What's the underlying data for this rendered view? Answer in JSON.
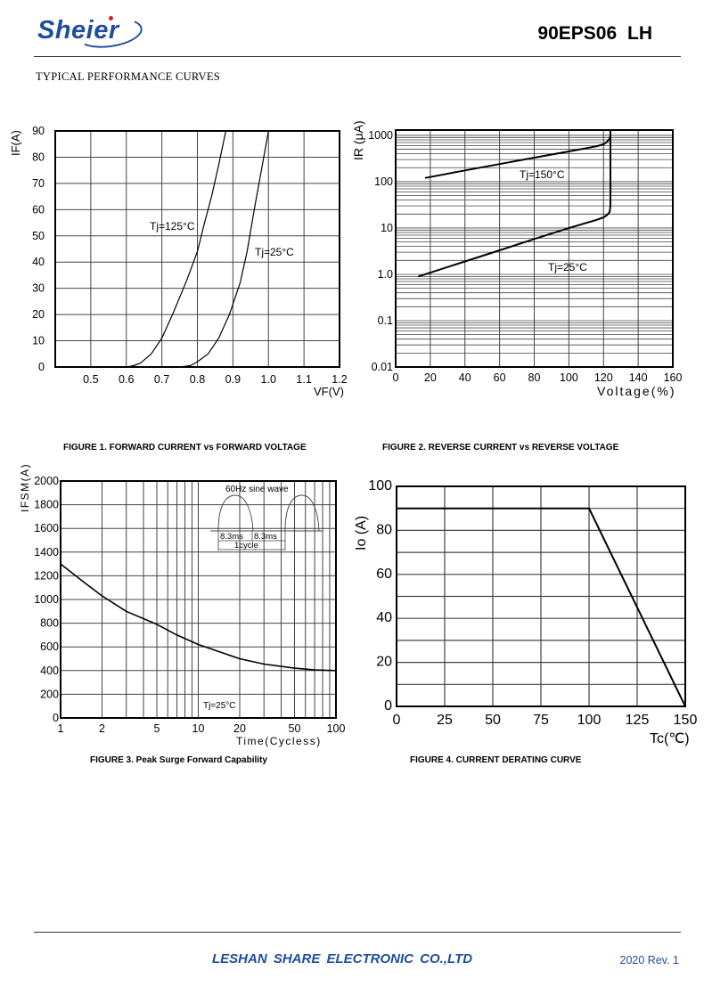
{
  "header": {
    "logo_text": "Sheier",
    "part_number": "90EPS06  LH",
    "section_title": "TYPICAL PERFORMANCE CURVES"
  },
  "captions": [
    "FIGURE 1. FORWARD CURRENT vs FORWARD VOLTAGE",
    "FIGURE 2. REVERSE CURRENT vs REVERSE VOLTAGE",
    "FIGURE 3. Peak Surge Forward Capability",
    "FIGURE 4. CURRENT DERATING CURVE"
  ],
  "inset": {
    "title": "60Hz sine wave",
    "half1": "8.3ms",
    "half2": "8.3ms",
    "cycle": "1cycle"
  },
  "footer": {
    "company": "LESHAN SHARE ELECTRONIC CO.,LTD",
    "revision": "2020  Rev. 1"
  },
  "colors": {
    "brand": "#1f4e9c",
    "logo_accent": "#e02020",
    "line": "#000000",
    "grid": "#555555"
  },
  "chart_data": [
    {
      "type": "line",
      "title": "FIGURE 1. FORWARD CURRENT vs FORWARD VOLTAGE",
      "xlabel": "VF(V)",
      "ylabel": "IF(A)",
      "xscale": "linear",
      "yscale": "linear",
      "xlim": [
        0.4,
        1.2
      ],
      "ylim": [
        0,
        90
      ],
      "xticks": [
        "0.5",
        "0.6",
        "0.7",
        "0.8",
        "0.9",
        "1.0",
        "1.1",
        "1.2"
      ],
      "yticks": [
        "0",
        "10",
        "20",
        "30",
        "40",
        "50",
        "60",
        "70",
        "80",
        "90"
      ],
      "grid": true,
      "series": [
        {
          "name": "Tj=125°C",
          "x": [
            0.6,
            0.62,
            0.64,
            0.67,
            0.7,
            0.73,
            0.77,
            0.8,
            0.82,
            0.84,
            0.86,
            0.88
          ],
          "y": [
            0,
            0.5,
            1.5,
            5,
            11,
            20,
            33,
            44,
            55,
            65,
            77,
            90
          ]
        },
        {
          "name": "Tj=25°C",
          "x": [
            0.75,
            0.78,
            0.8,
            0.83,
            0.86,
            0.89,
            0.92,
            0.94,
            0.96,
            0.98,
            1.0
          ],
          "y": [
            0,
            0.5,
            2,
            5,
            11,
            20,
            32,
            44,
            60,
            75,
            90
          ]
        }
      ]
    },
    {
      "type": "line",
      "title": "FIGURE 2. REVERSE CURRENT vs REVERSE VOLTAGE",
      "xlabel": "Voltage(%)",
      "ylabel": "IR (μA)",
      "xscale": "linear",
      "yscale": "log",
      "xlim": [
        0,
        160
      ],
      "ylim": [
        0.01,
        1300
      ],
      "xticks": [
        "0",
        "20",
        "40",
        "60",
        "80",
        "100",
        "120",
        "140",
        "160"
      ],
      "yticks": [
        "0.01",
        "0.1",
        "1.0",
        "10",
        "100",
        "1000"
      ],
      "grid": true,
      "series": [
        {
          "name": "Tj=150°C",
          "x": [
            17,
            40,
            60,
            80,
            100,
            116,
            120,
            122,
            123.5,
            124,
            124
          ],
          "y": [
            120,
            175,
            240,
            330,
            450,
            580,
            640,
            720,
            850,
            1000,
            1300
          ]
        },
        {
          "name": "Tj=25°C",
          "x": [
            13,
            40,
            60,
            80,
            100,
            116,
            120,
            122,
            123.5,
            124,
            124
          ],
          "y": [
            0.9,
            1.9,
            3.3,
            5.8,
            10,
            15,
            17,
            19,
            22,
            30,
            1300
          ]
        }
      ]
    },
    {
      "type": "line",
      "title": "FIGURE 3. Peak Surge Forward Capability",
      "xlabel": "Time(Cycless)",
      "ylabel": "IFSM(A)",
      "xscale": "log",
      "yscale": "linear",
      "xlim": [
        1,
        100
      ],
      "ylim": [
        0,
        2000
      ],
      "xticks": [
        "1",
        "2",
        "5",
        "10",
        "20",
        "50",
        "100"
      ],
      "yticks": [
        "0",
        "200",
        "400",
        "600",
        "800",
        "1000",
        "1200",
        "1400",
        "1600",
        "1800",
        "2000"
      ],
      "grid": true,
      "annotation": "Tj=25°C",
      "series": [
        {
          "x": [
            1,
            1.5,
            2,
            3,
            5,
            7,
            10,
            15,
            20,
            30,
            50,
            70,
            100
          ],
          "y": [
            1300,
            1140,
            1030,
            900,
            790,
            700,
            620,
            550,
            500,
            455,
            420,
            405,
            400
          ]
        }
      ]
    },
    {
      "type": "line",
      "title": "FIGURE 4. CURRENT DERATING CURVE",
      "xlabel": "Tc(℃)",
      "ylabel": "Io (A)",
      "xscale": "linear",
      "yscale": "linear",
      "xlim": [
        0,
        150
      ],
      "ylim": [
        0,
        100
      ],
      "xticks": [
        "0",
        "25",
        "50",
        "75",
        "100",
        "125",
        "150"
      ],
      "yticks": [
        "0",
        "20",
        "40",
        "60",
        "80",
        "100"
      ],
      "grid": true,
      "series": [
        {
          "x": [
            0,
            100,
            150
          ],
          "y": [
            90,
            90,
            0
          ]
        }
      ]
    }
  ]
}
